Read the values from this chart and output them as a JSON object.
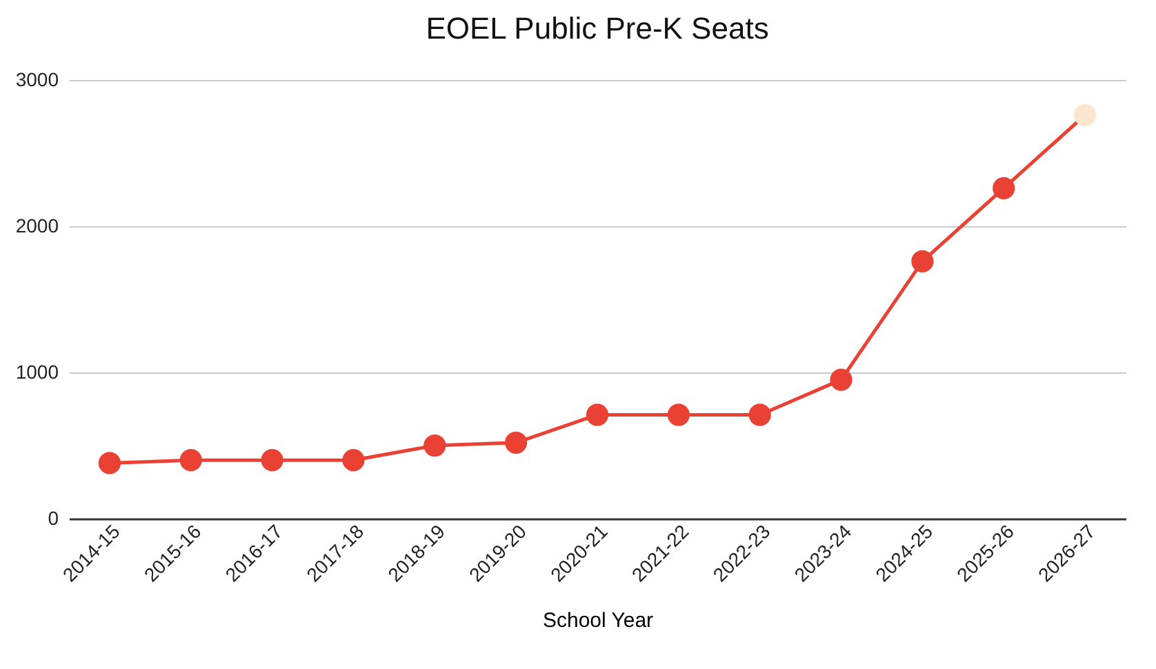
{
  "chart_data": {
    "type": "line",
    "title": "EOEL Public Pre-K Seats",
    "xlabel": "School Year",
    "categories": [
      "2014-15",
      "2015-16",
      "2016-17",
      "2017-18",
      "2018-19",
      "2019-20",
      "2020-21",
      "2021-22",
      "2022-23",
      "2023-24",
      "2024-25",
      "2025-26",
      "2026-27"
    ],
    "series": [
      {
        "color": "#e94235",
        "colors": [
          "#e94235",
          "#e94235",
          "#e94235",
          "#e94235",
          "#e94235",
          "#e94235",
          "#e94235",
          "#e94235",
          "#e94235",
          "#e94235",
          "#e94235",
          "#e94235",
          "#fce5cd"
        ],
        "values": [
          380,
          400,
          400,
          400,
          500,
          520,
          710,
          710,
          710,
          950,
          1760,
          2260,
          2760
        ]
      }
    ],
    "ylim": [
      0,
      3000
    ],
    "yticks": [
      0,
      1000,
      2000,
      3000
    ],
    "grid": "y",
    "marker": "circle",
    "line_style": "solid"
  }
}
